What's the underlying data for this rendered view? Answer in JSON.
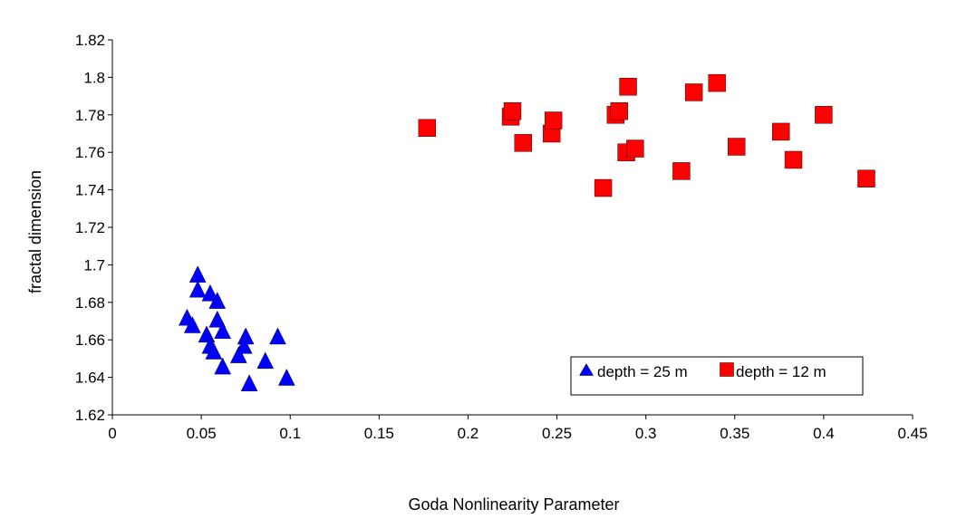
{
  "chart_data": {
    "type": "scatter",
    "title": "",
    "xlabel": "Goda Nonlinearity Parameter",
    "ylabel": "fractal dimension",
    "xlim": [
      0,
      0.45
    ],
    "ylim": [
      1.62,
      1.82
    ],
    "xticks": [
      0,
      0.05,
      0.1,
      0.15,
      0.2,
      0.25,
      0.3,
      0.35,
      0.4,
      0.45
    ],
    "xtick_labels": [
      "0",
      "0.05",
      "0.1",
      "0.15",
      "0.2",
      "0.25",
      "0.3",
      "0.35",
      "0.4",
      "0.45"
    ],
    "yticks": [
      1.62,
      1.64,
      1.66,
      1.68,
      1.7,
      1.72,
      1.74,
      1.76,
      1.78,
      1.8,
      1.82
    ],
    "ytick_labels": [
      "1.62",
      "1.64",
      "1.66",
      "1.68",
      "1.7",
      "1.72",
      "1.74",
      "1.76",
      "1.78",
      "1.8",
      "1.82"
    ],
    "grid": false,
    "legend_position": "bottom-right",
    "series": [
      {
        "name": "depth = 25 m",
        "marker": "triangle",
        "color": "#0000ff",
        "points": [
          [
            0.048,
            1.694
          ],
          [
            0.048,
            1.686
          ],
          [
            0.055,
            1.684
          ],
          [
            0.059,
            1.68
          ],
          [
            0.042,
            1.671
          ],
          [
            0.045,
            1.667
          ],
          [
            0.059,
            1.67
          ],
          [
            0.053,
            1.662
          ],
          [
            0.062,
            1.664
          ],
          [
            0.055,
            1.656
          ],
          [
            0.057,
            1.653
          ],
          [
            0.075,
            1.661
          ],
          [
            0.074,
            1.656
          ],
          [
            0.071,
            1.651
          ],
          [
            0.093,
            1.661
          ],
          [
            0.062,
            1.645
          ],
          [
            0.086,
            1.648
          ],
          [
            0.077,
            1.636
          ],
          [
            0.098,
            1.639
          ]
        ]
      },
      {
        "name": "depth = 12 m",
        "marker": "square",
        "color": "#ff0000",
        "points": [
          [
            0.177,
            1.773
          ],
          [
            0.224,
            1.779
          ],
          [
            0.225,
            1.782
          ],
          [
            0.231,
            1.765
          ],
          [
            0.247,
            1.77
          ],
          [
            0.248,
            1.777
          ],
          [
            0.276,
            1.741
          ],
          [
            0.283,
            1.78
          ],
          [
            0.285,
            1.782
          ],
          [
            0.29,
            1.795
          ],
          [
            0.289,
            1.76
          ],
          [
            0.294,
            1.762
          ],
          [
            0.32,
            1.75
          ],
          [
            0.327,
            1.792
          ],
          [
            0.34,
            1.797
          ],
          [
            0.351,
            1.763
          ],
          [
            0.376,
            1.771
          ],
          [
            0.383,
            1.756
          ],
          [
            0.4,
            1.78
          ],
          [
            0.424,
            1.746
          ]
        ]
      }
    ]
  }
}
